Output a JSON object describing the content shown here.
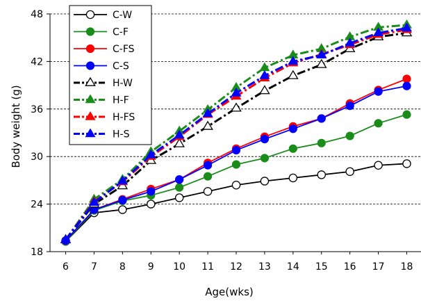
{
  "chart_data": {
    "type": "line",
    "xlabel": "Age(wks)",
    "ylabel": "Body weight (g)",
    "x": [
      6,
      7,
      8,
      9,
      10,
      11,
      12,
      13,
      14,
      15,
      16,
      17,
      18
    ],
    "xlim": [
      5.45,
      18.55
    ],
    "ylim": [
      18,
      48
    ],
    "yticks": [
      18,
      24,
      30,
      36,
      42,
      48
    ],
    "grid": "horizontal dashed",
    "legend_position": "top-left",
    "series": [
      {
        "name": "C-W",
        "color": "#000000",
        "marker": "circle-open",
        "line": "solid",
        "values": [
          19.3,
          22.9,
          23.3,
          24.0,
          24.8,
          25.6,
          26.4,
          26.9,
          27.3,
          27.7,
          28.1,
          28.9,
          29.1
        ]
      },
      {
        "name": "C-F",
        "color": "#1a8c1a",
        "marker": "circle",
        "line": "solid",
        "values": [
          19.3,
          23.2,
          24.4,
          25.1,
          26.1,
          27.5,
          29.0,
          29.8,
          31.0,
          31.7,
          32.6,
          34.2,
          35.3
        ]
      },
      {
        "name": "C-FS",
        "color": "#ff0000",
        "marker": "circle",
        "line": "solid",
        "values": [
          19.4,
          23.3,
          24.6,
          25.9,
          27.1,
          29.2,
          31.0,
          32.5,
          33.8,
          34.8,
          36.7,
          38.4,
          39.8
        ]
      },
      {
        "name": "C-S",
        "color": "#0000ff",
        "marker": "circle",
        "line": "solid",
        "values": [
          19.4,
          23.3,
          24.5,
          25.6,
          27.1,
          28.9,
          30.8,
          32.2,
          33.5,
          34.8,
          36.4,
          38.2,
          38.9
        ]
      },
      {
        "name": "H-W",
        "color": "#000000",
        "marker": "triangle-open",
        "line": "dash-dot",
        "values": [
          19.5,
          24.0,
          26.3,
          29.5,
          31.6,
          33.8,
          36.1,
          38.3,
          40.2,
          41.6,
          43.6,
          45.1,
          45.6
        ]
      },
      {
        "name": "H-F",
        "color": "#1a8c1a",
        "marker": "triangle",
        "line": "dash-dot",
        "values": [
          19.5,
          24.6,
          27.1,
          30.6,
          33.2,
          35.9,
          38.7,
          41.2,
          42.8,
          43.6,
          45.1,
          46.3,
          46.6
        ]
      },
      {
        "name": "H-FS",
        "color": "#ff0000",
        "marker": "triangle",
        "line": "dash-dot",
        "values": [
          19.5,
          24.3,
          26.8,
          30.0,
          32.5,
          35.3,
          37.6,
          39.9,
          41.8,
          42.9,
          44.1,
          45.4,
          46.0
        ]
      },
      {
        "name": "H-S",
        "color": "#0000ff",
        "marker": "triangle",
        "line": "dash-dot",
        "values": [
          19.5,
          24.2,
          26.9,
          30.2,
          32.7,
          35.4,
          38.0,
          40.2,
          42.0,
          42.8,
          44.3,
          45.6,
          46.2
        ]
      }
    ]
  }
}
